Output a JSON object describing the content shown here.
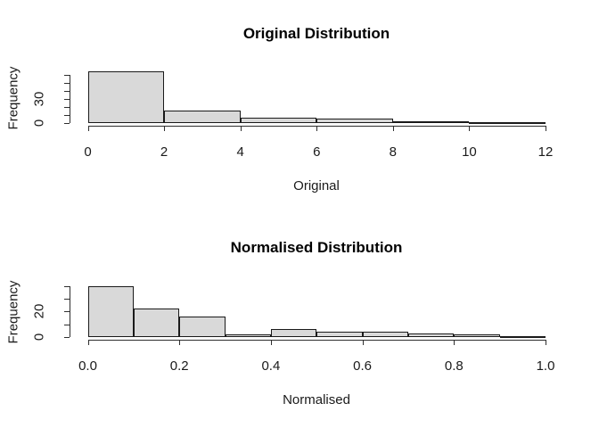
{
  "figure": {
    "background": "#ffffff",
    "bar_fill": "#d9d9d9",
    "bar_stroke": "#1a1a1a",
    "axis_color": "#2e2e2e",
    "text_color": "#1a1a1a"
  },
  "chart_data": [
    {
      "type": "bar",
      "chart_kind": "histogram",
      "title": "Original Distribution",
      "xlabel": "Original",
      "ylabel": "Frequency",
      "grid": false,
      "legend": null,
      "xlim": [
        0,
        12
      ],
      "ylim": [
        0,
        64
      ],
      "breaks": [
        0,
        2,
        4,
        6,
        8,
        10,
        12
      ],
      "counts": [
        64,
        15,
        7,
        5,
        2,
        1
      ],
      "x_ticks": [
        {
          "value": 0,
          "label": "0"
        },
        {
          "value": 2,
          "label": "2"
        },
        {
          "value": 4,
          "label": "4"
        },
        {
          "value": 6,
          "label": "6"
        },
        {
          "value": 8,
          "label": "8"
        },
        {
          "value": 10,
          "label": "10"
        },
        {
          "value": 12,
          "label": "12"
        }
      ],
      "y_ticks": [
        {
          "value": 0,
          "label": "0"
        },
        {
          "value": 10,
          "label": ""
        },
        {
          "value": 20,
          "label": ""
        },
        {
          "value": 30,
          "label": "30"
        },
        {
          "value": 40,
          "label": ""
        },
        {
          "value": 50,
          "label": ""
        },
        {
          "value": 60,
          "label": ""
        }
      ]
    },
    {
      "type": "bar",
      "chart_kind": "histogram",
      "title": "Normalised Distribution",
      "xlabel": "Normalised",
      "ylabel": "Frequency",
      "grid": false,
      "legend": null,
      "xlim": [
        0,
        1
      ],
      "ylim": [
        0,
        40
      ],
      "breaks": [
        0.0,
        0.1,
        0.2,
        0.3,
        0.4,
        0.5,
        0.6,
        0.7,
        0.8,
        0.9,
        1.0
      ],
      "counts": [
        40,
        22,
        16,
        2,
        6,
        4,
        4,
        3,
        2,
        1
      ],
      "x_ticks": [
        {
          "value": 0.0,
          "label": "0.0"
        },
        {
          "value": 0.2,
          "label": "0.2"
        },
        {
          "value": 0.4,
          "label": "0.4"
        },
        {
          "value": 0.6,
          "label": "0.6"
        },
        {
          "value": 0.8,
          "label": "0.8"
        },
        {
          "value": 1.0,
          "label": "1.0"
        }
      ],
      "y_ticks": [
        {
          "value": 0,
          "label": "0"
        },
        {
          "value": 10,
          "label": ""
        },
        {
          "value": 20,
          "label": "20"
        },
        {
          "value": 30,
          "label": ""
        },
        {
          "value": 40,
          "label": ""
        }
      ]
    }
  ]
}
